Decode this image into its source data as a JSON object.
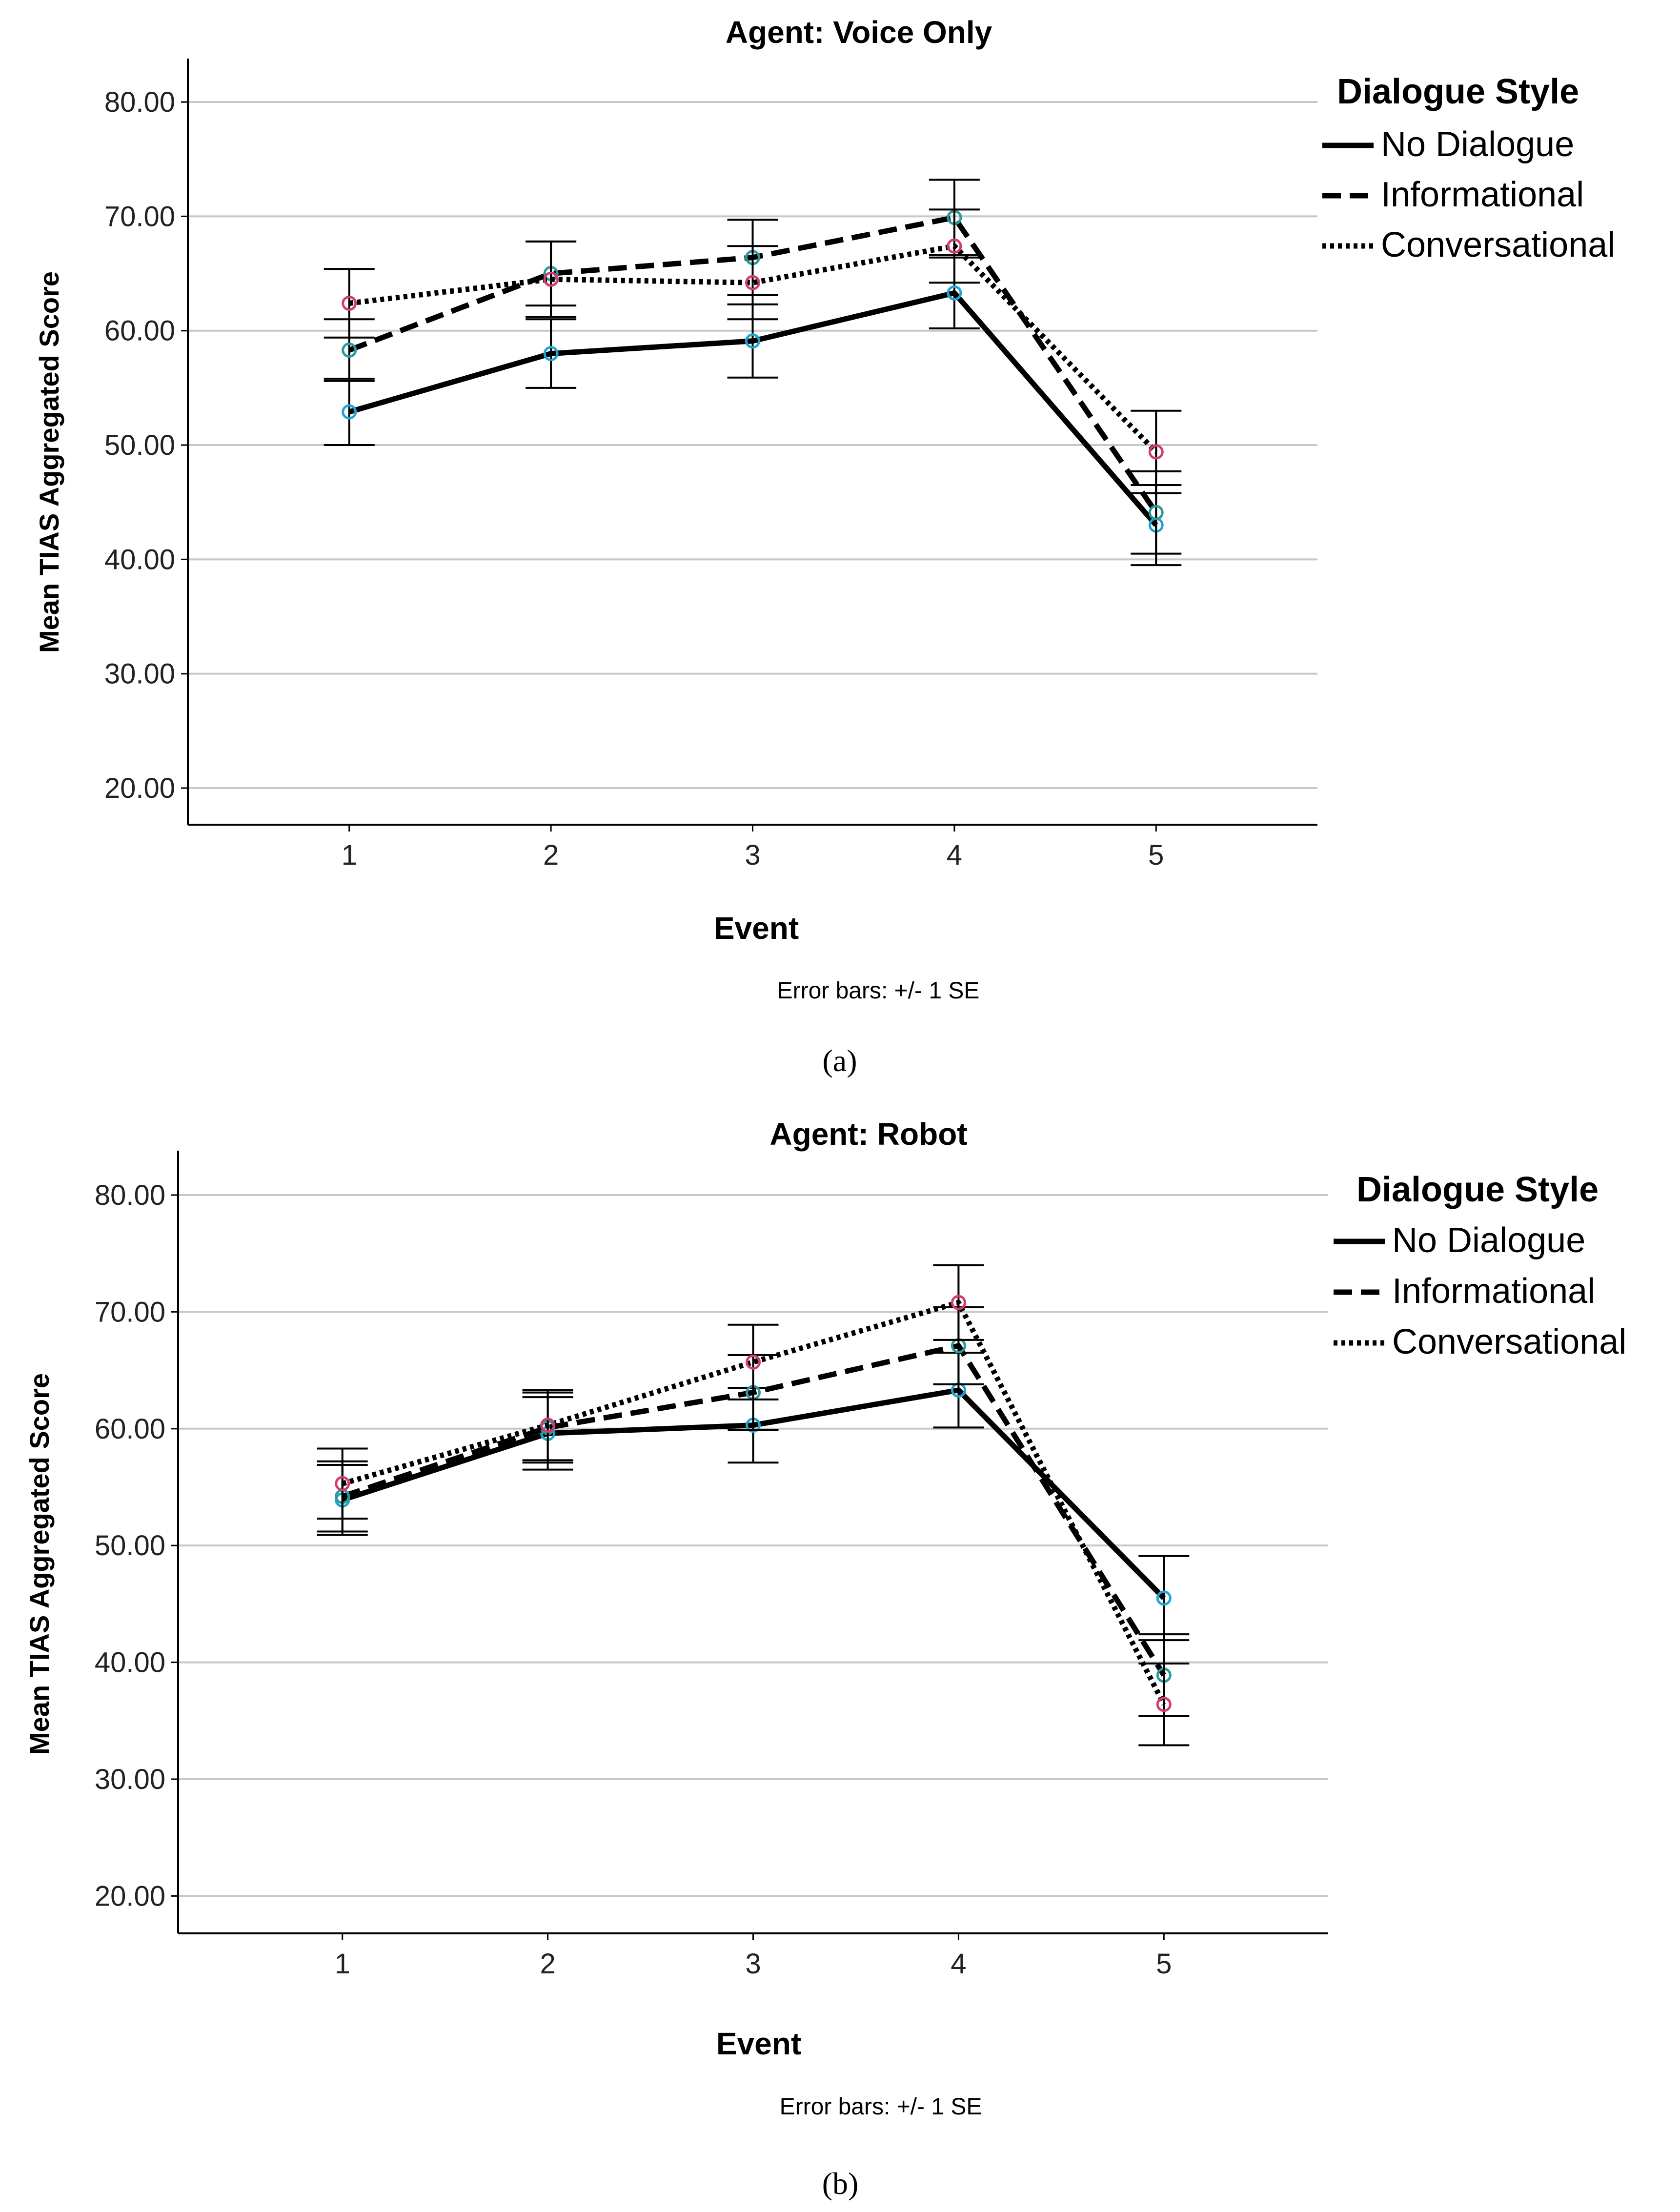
{
  "figure": {
    "caption_a": "(a)",
    "caption_b": "(b)"
  },
  "chart_data": [
    {
      "type": "line",
      "title": "Agent: Voice Only",
      "xlabel": "Event",
      "ylabel": "Mean TIAS Aggregated Score",
      "footnote": "Error bars: +/- 1 SE",
      "legend_title": "Dialogue Style",
      "legend_position": "top-right",
      "grid": true,
      "ylim": [
        16.8,
        83.8
      ],
      "xlim": [
        0.2,
        5.8
      ],
      "y_ticks": [
        "20.00",
        "30.00",
        "40.00",
        "50.00",
        "60.00",
        "70.00",
        "80.00"
      ],
      "x": [
        1,
        2,
        3,
        4,
        5
      ],
      "x_tick_labels": [
        "1",
        "2",
        "3",
        "4",
        "5"
      ],
      "series": [
        {
          "name": "No Dialogue",
          "style": "solid",
          "marker_color": "#1fa5cf",
          "values": [
            52.9,
            58.0,
            59.1,
            63.3,
            43.0
          ],
          "error": [
            2.9,
            3.0,
            3.2,
            3.1,
            3.5
          ]
        },
        {
          "name": "Informational",
          "style": "dashed",
          "marker_color": "#2a9a9a",
          "values": [
            58.3,
            65.0,
            66.4,
            69.9,
            44.1
          ],
          "error": [
            2.7,
            2.8,
            3.3,
            3.3,
            3.6
          ]
        },
        {
          "name": "Conversational",
          "style": "dotted",
          "marker_color": "#d23c6e",
          "values": [
            62.4,
            64.5,
            64.2,
            67.4,
            49.4
          ],
          "error": [
            3.0,
            3.3,
            3.2,
            3.2,
            3.6
          ]
        }
      ]
    },
    {
      "type": "line",
      "title": "Agent: Robot",
      "xlabel": "Event",
      "ylabel": "Mean TIAS Aggregated Score",
      "footnote": "Error bars: +/- 1 SE",
      "legend_title": "Dialogue Style",
      "legend_position": "top-right",
      "grid": true,
      "ylim": [
        16.8,
        83.8
      ],
      "xlim": [
        0.2,
        5.8
      ],
      "y_ticks": [
        "20.00",
        "30.00",
        "40.00",
        "50.00",
        "60.00",
        "70.00",
        "80.00"
      ],
      "x": [
        1,
        2,
        3,
        4,
        5
      ],
      "x_tick_labels": [
        "1",
        "2",
        "3",
        "4",
        "5"
      ],
      "series": [
        {
          "name": "No Dialogue",
          "style": "solid",
          "marker_color": "#1fa5cf",
          "values": [
            53.9,
            59.6,
            60.3,
            63.3,
            45.5
          ],
          "error": [
            3.0,
            3.1,
            3.2,
            3.2,
            3.6
          ]
        },
        {
          "name": "Informational",
          "style": "dashed",
          "marker_color": "#2a9a9a",
          "values": [
            54.2,
            60.1,
            63.1,
            67.1,
            38.9
          ],
          "error": [
            3.0,
            3.0,
            3.2,
            3.3,
            3.5
          ]
        },
        {
          "name": "Conversational",
          "style": "dotted",
          "marker_color": "#d23c6e",
          "values": [
            55.3,
            60.3,
            65.7,
            70.8,
            36.4
          ],
          "error": [
            3.0,
            3.0,
            3.2,
            3.2,
            3.5
          ]
        }
      ]
    }
  ]
}
